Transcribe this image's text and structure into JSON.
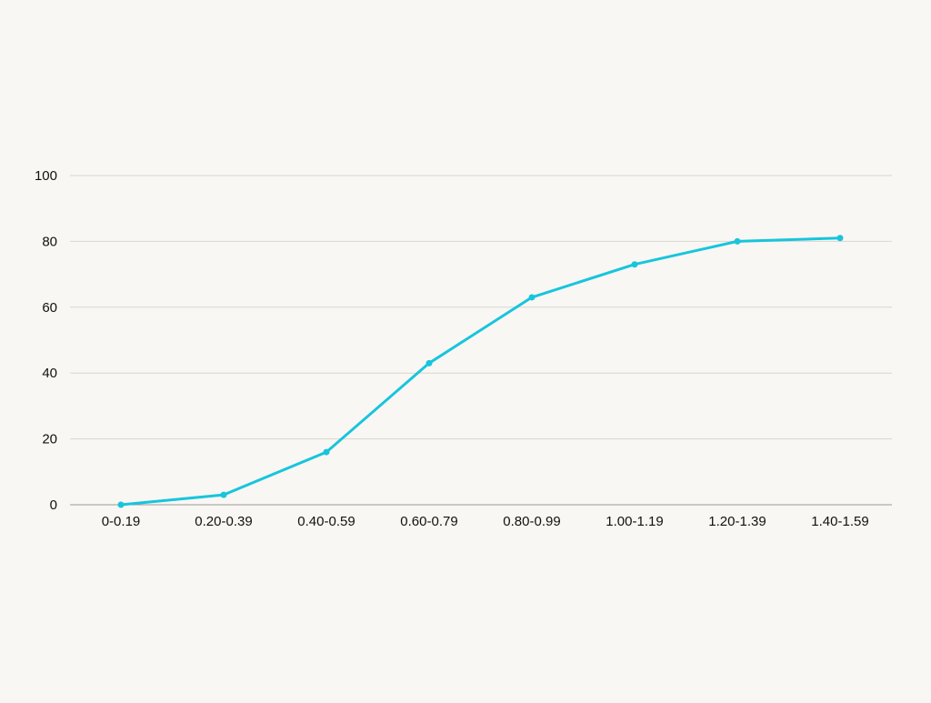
{
  "chart_data": {
    "type": "line",
    "title": "",
    "xlabel": "",
    "ylabel": "",
    "categories": [
      "0-0.19",
      "0.20-0.39",
      "0.40-0.59",
      "0.60-0.79",
      "0.80-0.99",
      "1.00-1.19",
      "1.20-1.39",
      "1.40-1.59"
    ],
    "series": [
      {
        "values": [
          0,
          3,
          16,
          43,
          63,
          73,
          80,
          81
        ]
      }
    ],
    "ylim": [
      0,
      100
    ],
    "yticks": [
      "0",
      "20",
      "40",
      "60",
      "80",
      "100"
    ],
    "grid": "horizontal",
    "legend": "none"
  },
  "colors": {
    "background": "#f9f7f3",
    "line": "#17c5dd",
    "grid": "#d9d6d1",
    "axis": "#9a9894",
    "text": "#111111"
  }
}
